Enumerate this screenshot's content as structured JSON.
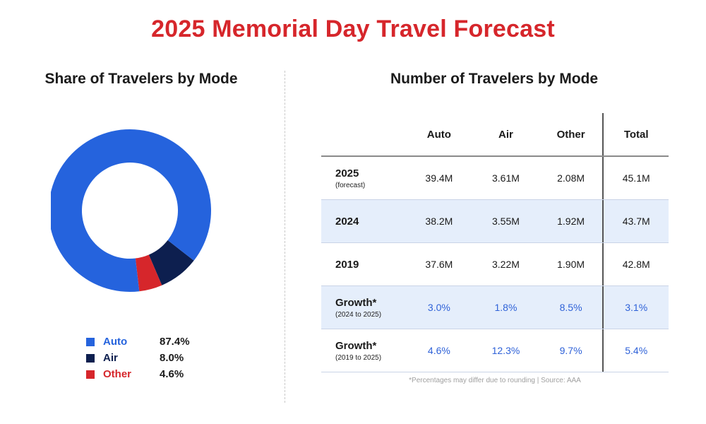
{
  "title": "2025 Memorial Day Travel Forecast",
  "left_title": "Share of Travelers by Mode",
  "right_title": "Number of Travelers by Mode",
  "colors": {
    "auto": "#2563dd",
    "air": "#0d1f4f",
    "other": "#d6262b",
    "title": "#d6262b",
    "growth": "#2f62d8"
  },
  "chart_data": [
    {
      "type": "pie",
      "title": "Share of Travelers by Mode",
      "donut": true,
      "slices": [
        {
          "label": "Auto",
          "value": 87.4,
          "display": "87.4%",
          "color": "#2563dd"
        },
        {
          "label": "Air",
          "value": 8.0,
          "display": "8.0%",
          "color": "#0d1f4f"
        },
        {
          "label": "Other",
          "value": 4.6,
          "display": "4.6%",
          "color": "#d6262b"
        }
      ],
      "legend_position": "bottom"
    },
    {
      "type": "table",
      "title": "Number of Travelers by Mode",
      "columns": [
        "",
        "Auto",
        "Air",
        "Other",
        "Total"
      ],
      "rows": [
        {
          "label": "2025",
          "sublabel": "(forecast)",
          "values": [
            "39.4M",
            "3.61M",
            "2.08M",
            "45.1M"
          ]
        },
        {
          "label": "2024",
          "sublabel": "",
          "values": [
            "38.2M",
            "3.55M",
            "1.92M",
            "43.7M"
          ]
        },
        {
          "label": "2019",
          "sublabel": "",
          "values": [
            "37.6M",
            "3.22M",
            "1.90M",
            "42.8M"
          ]
        },
        {
          "label": "Growth*",
          "sublabel": "(2024 to 2025)",
          "values": [
            "3.0%",
            "1.8%",
            "8.5%",
            "3.1%"
          ]
        },
        {
          "label": "Growth*",
          "sublabel": "(2019 to 2025)",
          "values": [
            "4.6%",
            "12.3%",
            "9.7%",
            "5.4%"
          ]
        }
      ]
    }
  ],
  "footnote": "*Percentages may differ due to rounding  |  Source: AAA"
}
